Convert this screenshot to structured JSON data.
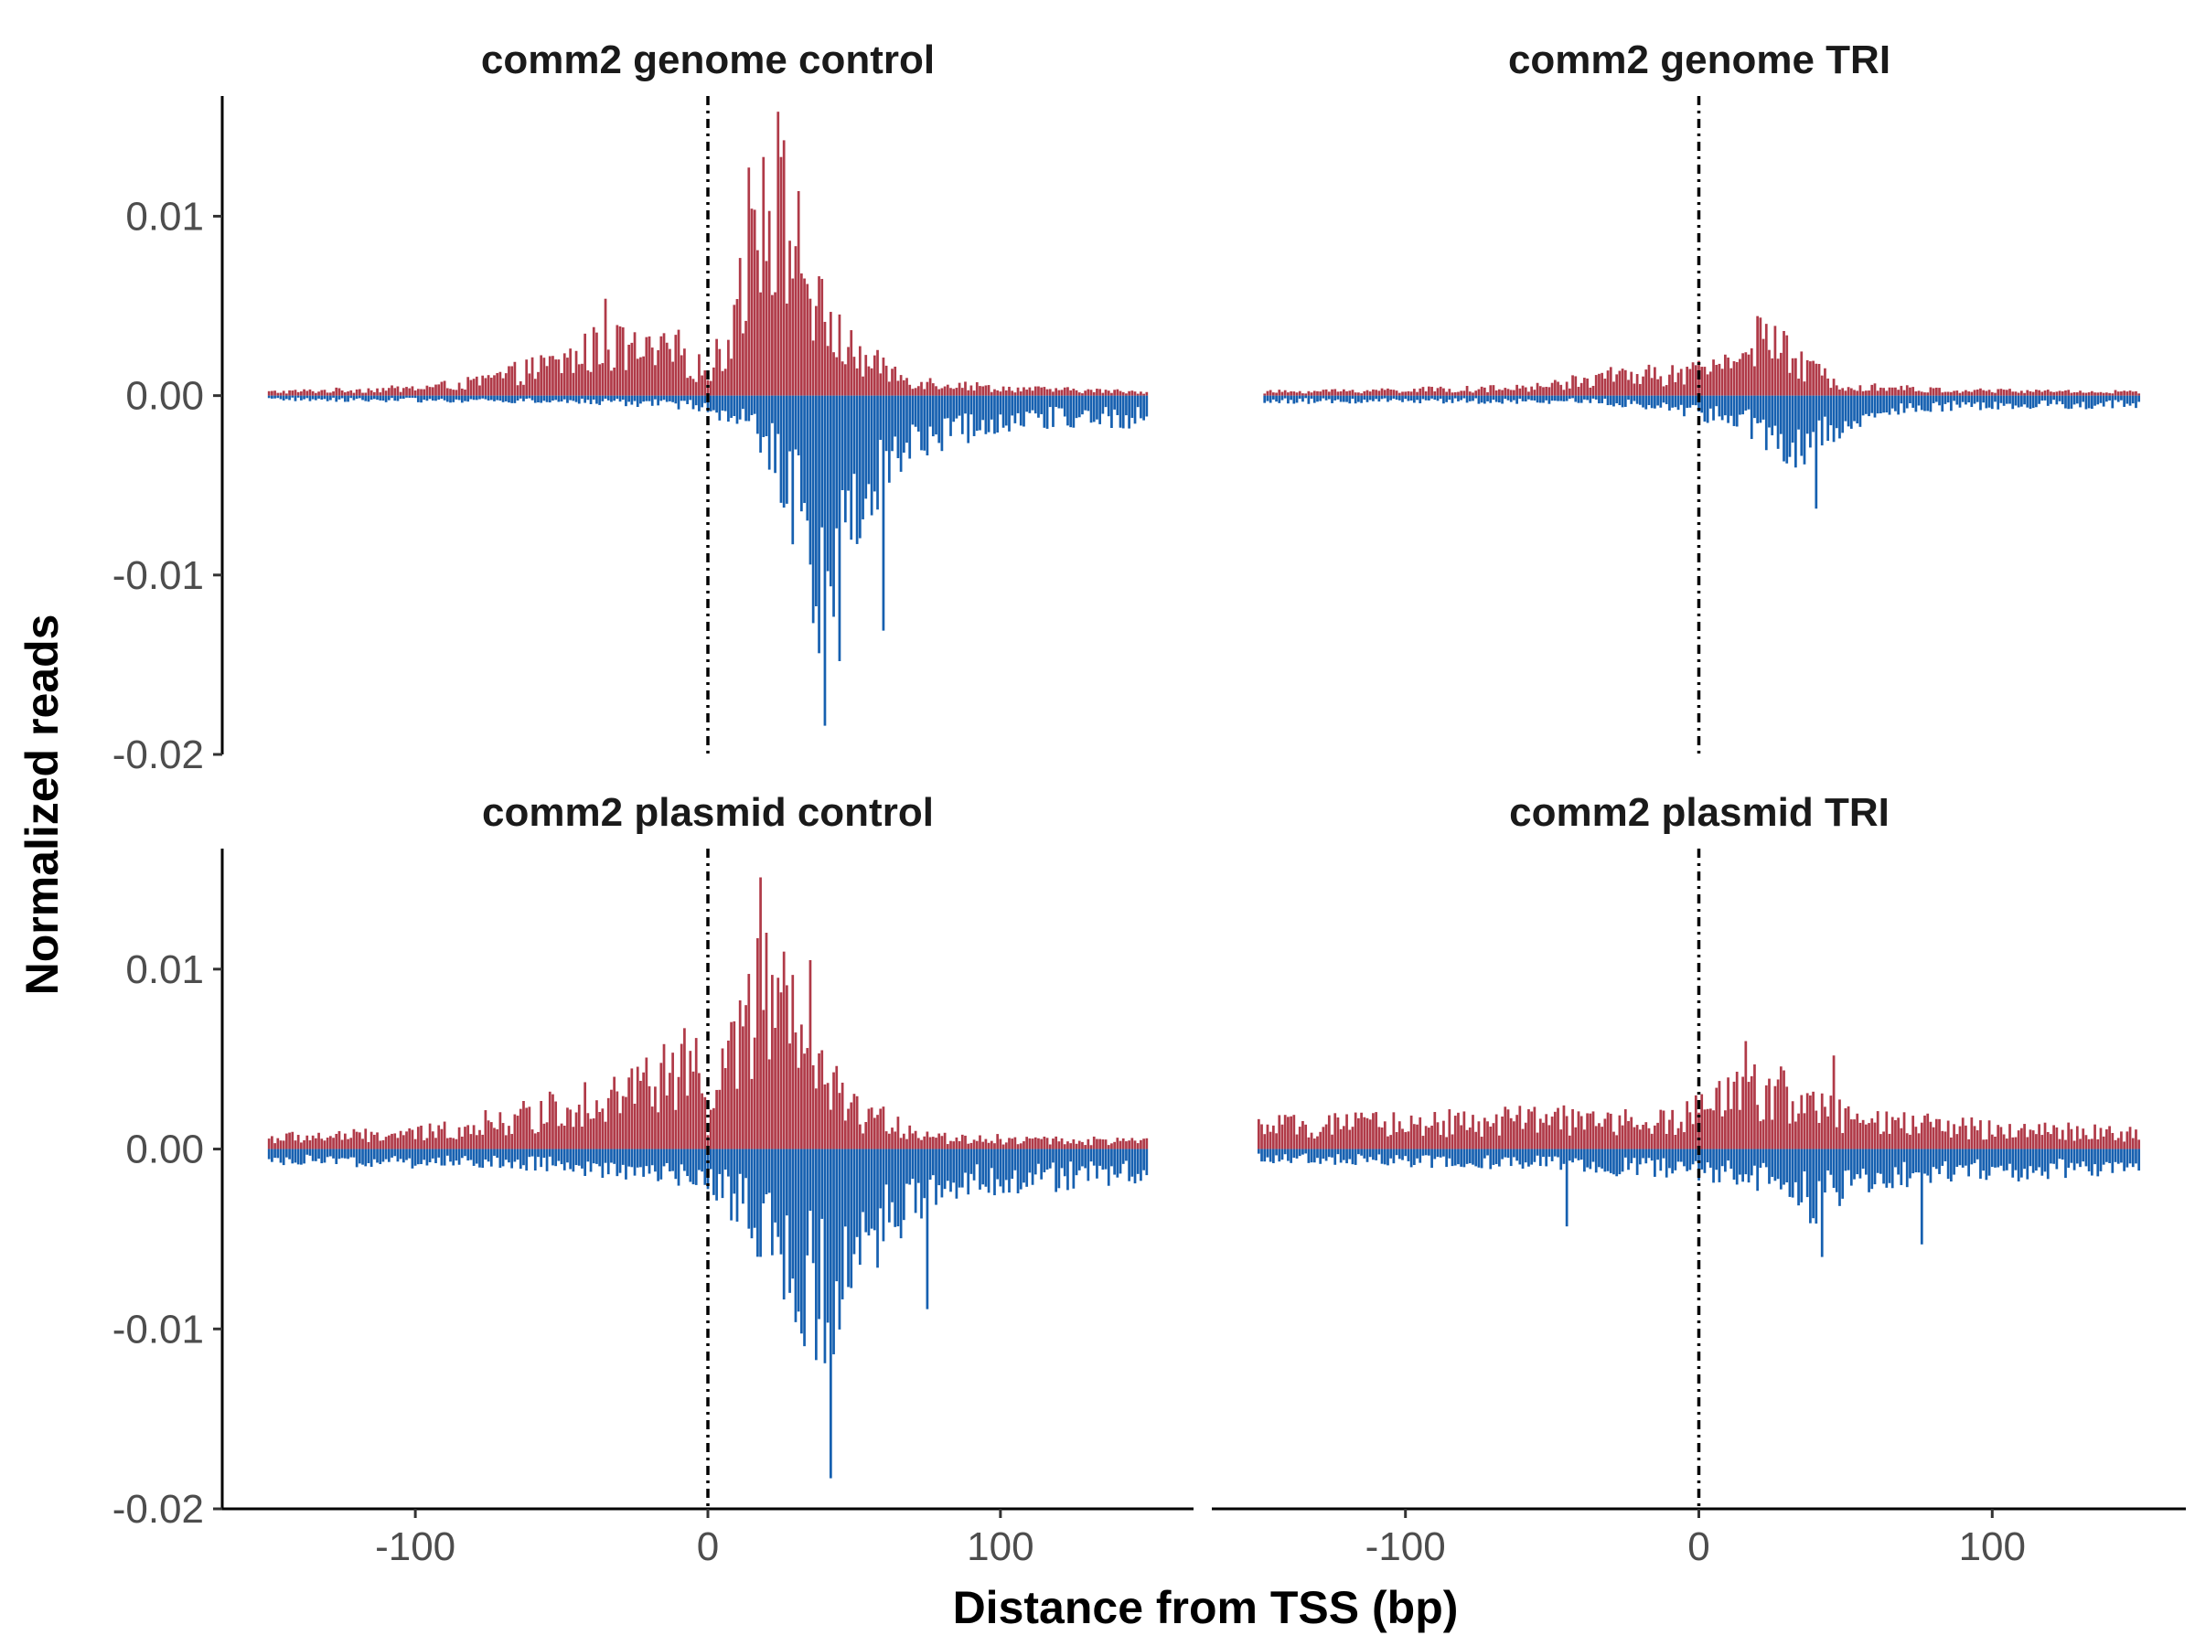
{
  "chart_data": {
    "type": "bar",
    "xlabel": "Distance from TSS (bp)",
    "ylabel": "Normalized reads",
    "xlim": [
      -166,
      166
    ],
    "ylim": [
      -0.02,
      0.0167
    ],
    "x_ticks": [
      -100,
      0,
      100
    ],
    "x_tick_labels": [
      "-100",
      "0",
      "100"
    ],
    "y_ticks": [
      0.01,
      0.0,
      -0.01,
      -0.02
    ],
    "y_tick_labels": [
      "0.01",
      "0.00",
      "-0.01",
      "-0.02"
    ],
    "reference_line_x": 0,
    "grid": false,
    "legend": "none",
    "colors": {
      "positive": "#B03A48",
      "negative": "#1660B0"
    },
    "panels": [
      {
        "title": "comm2 genome control",
        "x_range": [
          -150,
          150
        ],
        "positive_profile": [
          {
            "x": -150,
            "y": 0.0002
          },
          {
            "x": -100,
            "y": 0.0004
          },
          {
            "x": -80,
            "y": 0.0007
          },
          {
            "x": -50,
            "y": 0.0018
          },
          {
            "x": -35,
            "y": 0.0028
          },
          {
            "x": -20,
            "y": 0.0022
          },
          {
            "x": -10,
            "y": 0.0024
          },
          {
            "x": 0,
            "y": 0.0012
          },
          {
            "x": 8,
            "y": 0.0035
          },
          {
            "x": 15,
            "y": 0.0095
          },
          {
            "x": 22,
            "y": 0.0115
          },
          {
            "x": 30,
            "y": 0.0085
          },
          {
            "x": 38,
            "y": 0.0045
          },
          {
            "x": 50,
            "y": 0.0022
          },
          {
            "x": 70,
            "y": 0.0008
          },
          {
            "x": 100,
            "y": 0.0004
          },
          {
            "x": 150,
            "y": 0.0002
          }
        ],
        "positive_peaks": [
          {
            "x": -35,
            "y": 0.0054
          },
          {
            "x": 19,
            "y": 0.0133
          },
          {
            "x": 25,
            "y": 0.0133
          }
        ],
        "negative_profile": [
          {
            "x": -150,
            "y": -0.0002
          },
          {
            "x": -50,
            "y": -0.0003
          },
          {
            "x": -10,
            "y": -0.0005
          },
          {
            "x": 0,
            "y": -0.0006
          },
          {
            "x": 15,
            "y": -0.0018
          },
          {
            "x": 25,
            "y": -0.004
          },
          {
            "x": 32,
            "y": -0.0065
          },
          {
            "x": 38,
            "y": -0.0095
          },
          {
            "x": 45,
            "y": -0.008
          },
          {
            "x": 55,
            "y": -0.0045
          },
          {
            "x": 70,
            "y": -0.0025
          },
          {
            "x": 100,
            "y": -0.0013
          },
          {
            "x": 150,
            "y": -0.0012
          }
        ],
        "negative_peaks": [
          {
            "x": 40,
            "y": -0.0184
          },
          {
            "x": 45,
            "y": -0.0148
          },
          {
            "x": 60,
            "y": -0.0131
          }
        ]
      },
      {
        "title": "comm2 genome TRI",
        "x_range": [
          -148,
          150
        ],
        "positive_profile": [
          {
            "x": -150,
            "y": 0.0002
          },
          {
            "x": -60,
            "y": 0.0004
          },
          {
            "x": -40,
            "y": 0.0008
          },
          {
            "x": -25,
            "y": 0.0012
          },
          {
            "x": -5,
            "y": 0.0011
          },
          {
            "x": 5,
            "y": 0.0015
          },
          {
            "x": 15,
            "y": 0.0028
          },
          {
            "x": 25,
            "y": 0.003
          },
          {
            "x": 35,
            "y": 0.0016
          },
          {
            "x": 50,
            "y": 0.0006
          },
          {
            "x": 80,
            "y": 0.0003
          },
          {
            "x": 150,
            "y": 0.0002
          }
        ],
        "positive_peaks": [
          {
            "x": 23,
            "y": 0.004
          }
        ],
        "negative_profile": [
          {
            "x": -150,
            "y": -0.0003
          },
          {
            "x": -40,
            "y": -0.0003
          },
          {
            "x": -10,
            "y": -0.0006
          },
          {
            "x": 10,
            "y": -0.0012
          },
          {
            "x": 25,
            "y": -0.0022
          },
          {
            "x": 35,
            "y": -0.0028
          },
          {
            "x": 45,
            "y": -0.0018
          },
          {
            "x": 60,
            "y": -0.0008
          },
          {
            "x": 100,
            "y": -0.0005
          },
          {
            "x": 150,
            "y": -0.0005
          }
        ],
        "negative_peaks": [
          {
            "x": 40,
            "y": -0.0063
          }
        ]
      },
      {
        "title": "comm2 plasmid control",
        "x_range": [
          -150,
          150
        ],
        "positive_profile": [
          {
            "x": -150,
            "y": 0.0006
          },
          {
            "x": -100,
            "y": 0.0008
          },
          {
            "x": -60,
            "y": 0.0018
          },
          {
            "x": -40,
            "y": 0.0028
          },
          {
            "x": -20,
            "y": 0.0035
          },
          {
            "x": -5,
            "y": 0.0048
          },
          {
            "x": 0,
            "y": 0.0015
          },
          {
            "x": 10,
            "y": 0.006
          },
          {
            "x": 18,
            "y": 0.0085
          },
          {
            "x": 25,
            "y": 0.0075
          },
          {
            "x": 35,
            "y": 0.0045
          },
          {
            "x": 50,
            "y": 0.002
          },
          {
            "x": 80,
            "y": 0.0006
          },
          {
            "x": 150,
            "y": 0.0004
          }
        ],
        "positive_peaks": [
          {
            "x": 18,
            "y": 0.0151
          },
          {
            "x": 35,
            "y": 0.0105
          }
        ],
        "negative_profile": [
          {
            "x": -150,
            "y": -0.0006
          },
          {
            "x": -60,
            "y": -0.0008
          },
          {
            "x": -20,
            "y": -0.0012
          },
          {
            "x": 0,
            "y": -0.0015
          },
          {
            "x": 15,
            "y": -0.0035
          },
          {
            "x": 30,
            "y": -0.0065
          },
          {
            "x": 40,
            "y": -0.0085
          },
          {
            "x": 50,
            "y": -0.006
          },
          {
            "x": 60,
            "y": -0.004
          },
          {
            "x": 80,
            "y": -0.002
          },
          {
            "x": 150,
            "y": -0.0012
          }
        ],
        "negative_peaks": [
          {
            "x": 42,
            "y": -0.0183
          },
          {
            "x": 75,
            "y": -0.0089
          }
        ]
      },
      {
        "title": "comm2 plasmid TRI",
        "x_range": [
          -150,
          150
        ],
        "positive_profile": [
          {
            "x": -150,
            "y": 0.0012
          },
          {
            "x": -50,
            "y": 0.0016
          },
          {
            "x": -10,
            "y": 0.0014
          },
          {
            "x": 10,
            "y": 0.0028
          },
          {
            "x": 25,
            "y": 0.0035
          },
          {
            "x": 40,
            "y": 0.0022
          },
          {
            "x": 60,
            "y": 0.0014
          },
          {
            "x": 150,
            "y": 0.0008
          }
        ],
        "positive_peaks": [
          {
            "x": 16,
            "y": 0.006
          },
          {
            "x": 46,
            "y": 0.0052
          }
        ],
        "negative_profile": [
          {
            "x": -150,
            "y": -0.0005
          },
          {
            "x": -50,
            "y": -0.0008
          },
          {
            "x": 0,
            "y": -0.0012
          },
          {
            "x": 20,
            "y": -0.0015
          },
          {
            "x": 40,
            "y": -0.0028
          },
          {
            "x": 60,
            "y": -0.0015
          },
          {
            "x": 150,
            "y": -0.0009
          }
        ],
        "negative_peaks": [
          {
            "x": -45,
            "y": -0.0043
          },
          {
            "x": 42,
            "y": -0.006
          },
          {
            "x": 76,
            "y": -0.0053
          }
        ]
      }
    ]
  }
}
